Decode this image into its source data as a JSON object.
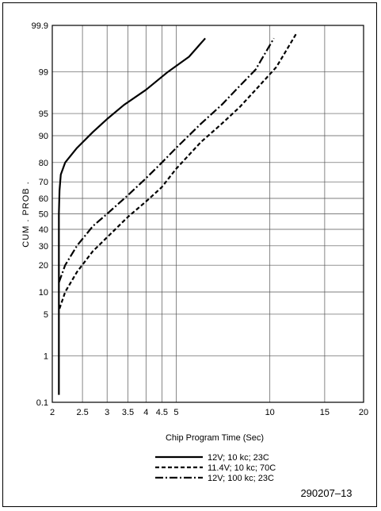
{
  "chart_data": {
    "type": "line",
    "title": "",
    "xlabel": "Chip Program Time (Sec)",
    "ylabel": "CUM . PROB .",
    "xscale": "log",
    "yscale": "normal-probability",
    "xlim": [
      2,
      20
    ],
    "ylim": [
      0.1,
      99.9
    ],
    "xticks": [
      2,
      2.5,
      3,
      3.5,
      4,
      4.5,
      5,
      10,
      15,
      20
    ],
    "xtick_labels": [
      "2",
      "2.5",
      "3",
      "3.5",
      "4",
      "4.5",
      "5",
      "10",
      "15",
      "20"
    ],
    "yticks": [
      0.1,
      1,
      5,
      10,
      20,
      30,
      40,
      50,
      60,
      70,
      80,
      90,
      95,
      99,
      99.9
    ],
    "ytick_labels": [
      "0.1",
      "1",
      "5",
      "10",
      "20",
      "30",
      "40",
      "50",
      "60",
      "70",
      "80",
      "90",
      "95",
      "99",
      "99.9"
    ],
    "grid": true,
    "legend_position": "bottom-center",
    "figure_id": "290207–13",
    "series": [
      {
        "name": "12V; 10 kc; 23C",
        "style": "solid",
        "points": [
          [
            2.1,
            0.15
          ],
          [
            2.1,
            5
          ],
          [
            2.1,
            14
          ],
          [
            2.1,
            30
          ],
          [
            2.1,
            50
          ],
          [
            2.11,
            65
          ],
          [
            2.13,
            74
          ],
          [
            2.2,
            80
          ],
          [
            2.4,
            86
          ],
          [
            2.7,
            91
          ],
          [
            3.0,
            94
          ],
          [
            3.4,
            96.3
          ],
          [
            4.0,
            97.9
          ],
          [
            4.7,
            99.0
          ],
          [
            5.5,
            99.5
          ],
          [
            6.2,
            99.8
          ]
        ]
      },
      {
        "name": "11.4V; 10 kc; 70C",
        "style": "dashed",
        "points": [
          [
            2.11,
            6
          ],
          [
            2.2,
            10
          ],
          [
            2.4,
            17
          ],
          [
            2.7,
            27
          ],
          [
            3.0,
            35
          ],
          [
            3.5,
            48
          ],
          [
            4.0,
            58
          ],
          [
            4.5,
            67
          ],
          [
            5.0,
            77
          ],
          [
            6.0,
            88
          ],
          [
            7.0,
            93
          ],
          [
            8.0,
            96
          ],
          [
            9.0,
            97.9
          ],
          [
            10.5,
            99.2
          ],
          [
            12.2,
            99.85
          ]
        ]
      },
      {
        "name": "12V; 100 kc; 23C",
        "style": "dashdot",
        "points": [
          [
            2.1,
            13
          ],
          [
            2.2,
            20
          ],
          [
            2.4,
            30
          ],
          [
            2.7,
            42
          ],
          [
            3.0,
            50
          ],
          [
            3.5,
            62
          ],
          [
            4.0,
            72
          ],
          [
            4.5,
            80
          ],
          [
            5.0,
            86
          ],
          [
            6.0,
            93
          ],
          [
            7.0,
            96.3
          ],
          [
            8.0,
            98.2
          ],
          [
            9.0,
            99.1
          ],
          [
            10.3,
            99.8
          ]
        ]
      }
    ]
  }
}
